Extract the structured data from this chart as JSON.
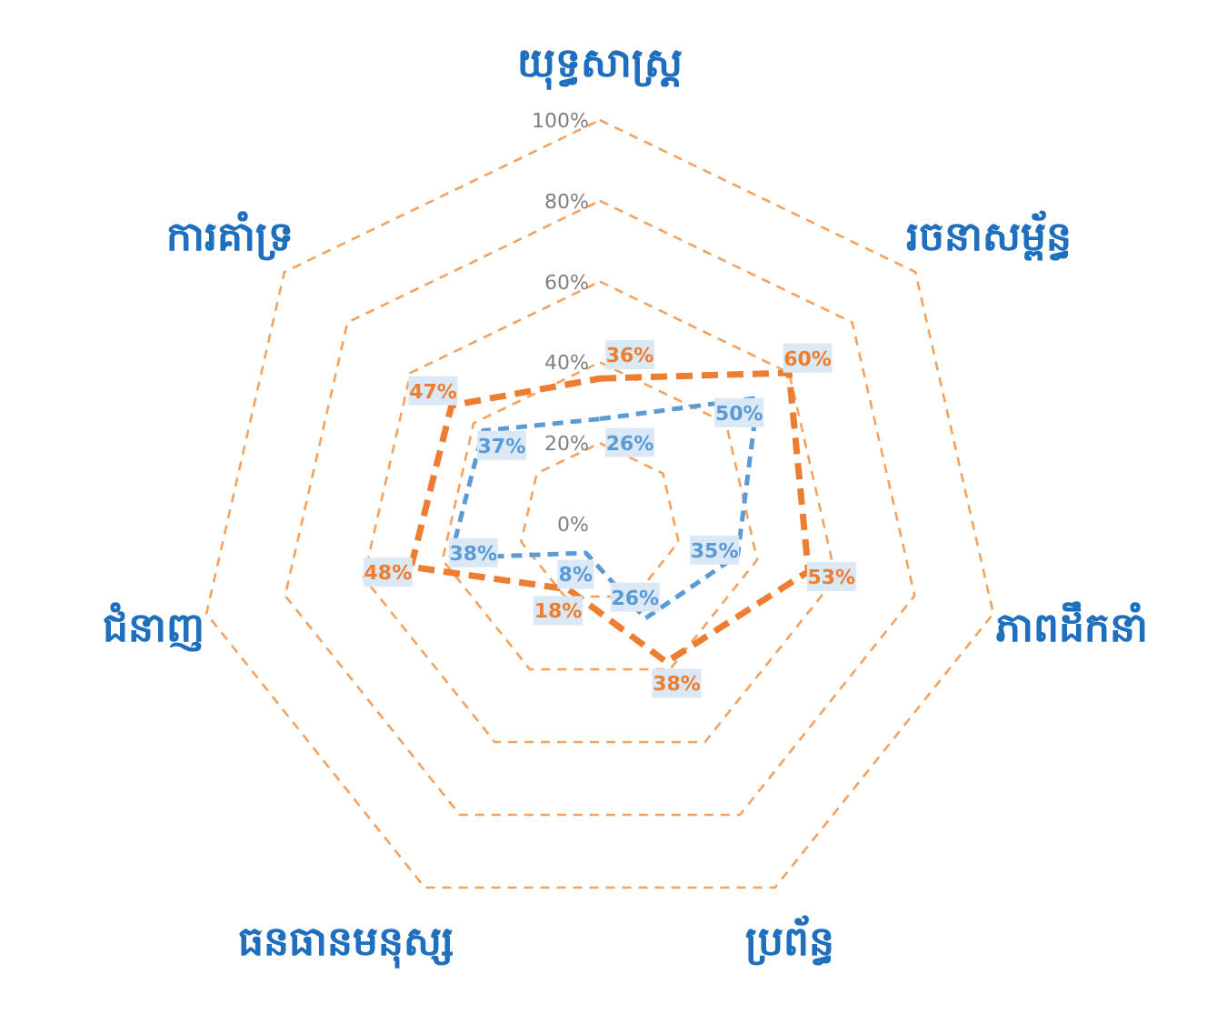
{
  "chart_data": {
    "type": "radar",
    "categories": [
      "យុទ្ធសាស្ត្រ",
      "រចនាសម្ព័ន្ធ",
      "ភាពដឹកនាំ",
      "ប្រព័ន្ធ",
      "ធនធានមនុស្ស",
      "ជំនាញ",
      "ការគាំទ្រ"
    ],
    "series": [
      {
        "color": "#ed7d31",
        "values": [
          36,
          60,
          53,
          38,
          18,
          48,
          47
        ],
        "value_labels": [
          "36%",
          "60%",
          "53%",
          "38%",
          "18%",
          "48%",
          "47%"
        ]
      },
      {
        "color": "#5b9bd5",
        "values": [
          26,
          50,
          35,
          26,
          8,
          38,
          37
        ],
        "value_labels": [
          "26%",
          "50%",
          "35%",
          "26%",
          "8%",
          "38%",
          "37%"
        ]
      }
    ],
    "ylim": [
      0,
      100
    ],
    "yticks": [
      {
        "value": 0,
        "label": "0%"
      },
      {
        "value": 20,
        "label": "20%"
      },
      {
        "value": 40,
        "label": "40%"
      },
      {
        "value": 60,
        "label": "60%"
      },
      {
        "value": 80,
        "label": "80%"
      },
      {
        "value": 100,
        "label": "100%"
      }
    ],
    "grid": true,
    "line_style": "dashed"
  }
}
